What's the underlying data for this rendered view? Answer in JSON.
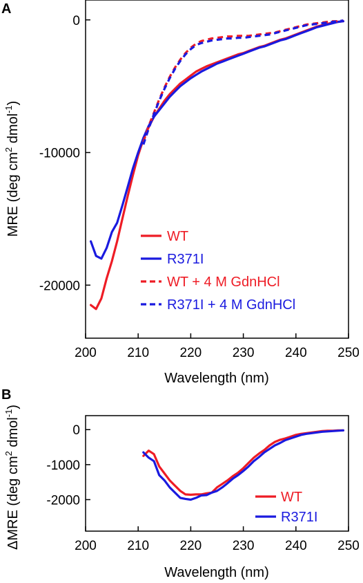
{
  "chart_data": [
    {
      "panel_label": "A",
      "type": "line",
      "xlabel": "Wavelength (nm)",
      "ylabel_parts": [
        "MRE (deg cm",
        "2",
        " dmol",
        "-1",
        ")"
      ],
      "xlim": [
        200,
        250
      ],
      "ylim": [
        -24000,
        1500
      ],
      "xticks": [
        200,
        210,
        220,
        230,
        240,
        250
      ],
      "yticks": [
        0,
        -10000,
        -20000
      ],
      "legend_position": "bottom-right",
      "series": [
        {
          "name": "WT",
          "color": "#ee1c25",
          "dash": "solid",
          "x": [
            201,
            202,
            203,
            204,
            205,
            206,
            207,
            208,
            209,
            210,
            211,
            212,
            213,
            214,
            215,
            216,
            217,
            218,
            219,
            220,
            221,
            222,
            223,
            224,
            225,
            226,
            227,
            228,
            229,
            230,
            231,
            232,
            233,
            234,
            235,
            236,
            237,
            238,
            239,
            240,
            241,
            242,
            243,
            244,
            245,
            246,
            247,
            248,
            249
          ],
          "y": [
            -21500,
            -21800,
            -21000,
            -19500,
            -18200,
            -16700,
            -15000,
            -13300,
            -11700,
            -10200,
            -9000,
            -8100,
            -7300,
            -6700,
            -6100,
            -5600,
            -5200,
            -4800,
            -4500,
            -4200,
            -3900,
            -3700,
            -3500,
            -3350,
            -3200,
            -3050,
            -2900,
            -2750,
            -2600,
            -2500,
            -2350,
            -2200,
            -2050,
            -1950,
            -1800,
            -1650,
            -1500,
            -1400,
            -1250,
            -1100,
            -950,
            -800,
            -650,
            -500,
            -400,
            -300,
            -200,
            -150,
            -100
          ]
        },
        {
          "name": "R371I",
          "color": "#1a1adf",
          "dash": "solid",
          "x": [
            201,
            202,
            203,
            204,
            205,
            206,
            207,
            208,
            209,
            210,
            211,
            212,
            213,
            214,
            215,
            216,
            217,
            218,
            219,
            220,
            221,
            222,
            223,
            224,
            225,
            226,
            227,
            228,
            229,
            230,
            231,
            232,
            233,
            234,
            235,
            236,
            237,
            238,
            239,
            240,
            241,
            242,
            243,
            244,
            245,
            246,
            247,
            248,
            249
          ],
          "y": [
            -16700,
            -17800,
            -18000,
            -17200,
            -16000,
            -15300,
            -14000,
            -12600,
            -11200,
            -10000,
            -8900,
            -8000,
            -7300,
            -6800,
            -6300,
            -5800,
            -5400,
            -5000,
            -4700,
            -4400,
            -4150,
            -3900,
            -3700,
            -3500,
            -3300,
            -3150,
            -3000,
            -2850,
            -2700,
            -2550,
            -2400,
            -2250,
            -2100,
            -2000,
            -1850,
            -1700,
            -1550,
            -1450,
            -1300,
            -1150,
            -1000,
            -850,
            -700,
            -550,
            -450,
            -350,
            -250,
            -150,
            -100
          ]
        },
        {
          "name": "WT + 4 M GdnHCl",
          "color": "#ee1c25",
          "dash": "dashed",
          "x": [
            211,
            212,
            213,
            214,
            215,
            216,
            217,
            218,
            219,
            220,
            221,
            222,
            223,
            224,
            225,
            226,
            227,
            228,
            229,
            230,
            231,
            232,
            233,
            234,
            235,
            236,
            237,
            238,
            239,
            240,
            241,
            242,
            243,
            244,
            245,
            246,
            247,
            248,
            249
          ],
          "y": [
            -9200,
            -8000,
            -7000,
            -6000,
            -5100,
            -4300,
            -3600,
            -3000,
            -2500,
            -2100,
            -1800,
            -1600,
            -1500,
            -1400,
            -1350,
            -1300,
            -1250,
            -1250,
            -1200,
            -1200,
            -1200,
            -1150,
            -1100,
            -1050,
            -1000,
            -950,
            -850,
            -750,
            -650,
            -550,
            -450,
            -350,
            -300,
            -250,
            -200,
            -150,
            -100,
            -100,
            -50
          ]
        },
        {
          "name": "R371I + 4 M GdnHCl",
          "color": "#1a1adf",
          "dash": "dashed",
          "x": [
            211,
            212,
            213,
            214,
            215,
            216,
            217,
            218,
            219,
            220,
            221,
            222,
            223,
            224,
            225,
            226,
            227,
            228,
            229,
            230,
            231,
            232,
            233,
            234,
            235,
            236,
            237,
            238,
            239,
            240,
            241,
            242,
            243,
            244,
            245,
            246,
            247,
            248,
            249
          ],
          "y": [
            -9400,
            -8200,
            -7100,
            -6100,
            -5200,
            -4400,
            -3700,
            -3100,
            -2600,
            -2200,
            -1900,
            -1750,
            -1650,
            -1550,
            -1500,
            -1450,
            -1400,
            -1400,
            -1350,
            -1350,
            -1300,
            -1250,
            -1200,
            -1150,
            -1100,
            -1000,
            -900,
            -800,
            -700,
            -600,
            -500,
            -400,
            -350,
            -300,
            -250,
            -200,
            -150,
            -100,
            -50
          ]
        }
      ]
    },
    {
      "panel_label": "B",
      "type": "line",
      "xlabel": "Wavelength (nm)",
      "ylabel_parts": [
        "ΔMRE (deg cm",
        "2",
        " dmol",
        "-1",
        ")"
      ],
      "xlim": [
        200,
        250
      ],
      "ylim": [
        -2900,
        400
      ],
      "xticks": [
        200,
        210,
        220,
        230,
        240,
        250
      ],
      "yticks": [
        0,
        -1000,
        -2000
      ],
      "legend_position": "bottom-right",
      "series": [
        {
          "name": "WT",
          "color": "#ee1c25",
          "dash": "solid",
          "x": [
            211,
            212,
            213,
            214,
            215,
            216,
            217,
            218,
            219,
            220,
            221,
            222,
            223,
            224,
            225,
            226,
            227,
            228,
            229,
            230,
            231,
            232,
            233,
            234,
            235,
            236,
            237,
            238,
            239,
            240,
            241,
            242,
            243,
            244,
            245,
            246,
            247,
            248,
            249
          ],
          "y": [
            -750,
            -600,
            -700,
            -1050,
            -1250,
            -1450,
            -1600,
            -1750,
            -1850,
            -1860,
            -1850,
            -1850,
            -1820,
            -1800,
            -1650,
            -1550,
            -1450,
            -1330,
            -1230,
            -1100,
            -950,
            -800,
            -680,
            -580,
            -450,
            -350,
            -290,
            -250,
            -200,
            -150,
            -120,
            -100,
            -80,
            -60,
            -40,
            -30,
            -30,
            -20,
            -20
          ]
        },
        {
          "name": "R371I",
          "color": "#1a1adf",
          "dash": "solid",
          "x": [
            211,
            212,
            213,
            214,
            215,
            216,
            217,
            218,
            219,
            220,
            221,
            222,
            223,
            224,
            225,
            226,
            227,
            228,
            229,
            230,
            231,
            232,
            233,
            234,
            235,
            236,
            237,
            238,
            239,
            240,
            241,
            242,
            243,
            244,
            245,
            246,
            247,
            248,
            249
          ],
          "y": [
            -650,
            -800,
            -900,
            -1300,
            -1450,
            -1650,
            -1800,
            -1950,
            -1980,
            -2000,
            -1950,
            -1880,
            -1870,
            -1800,
            -1750,
            -1650,
            -1530,
            -1400,
            -1300,
            -1180,
            -1050,
            -900,
            -780,
            -650,
            -550,
            -450,
            -380,
            -300,
            -250,
            -200,
            -150,
            -120,
            -100,
            -80,
            -60,
            -50,
            -40,
            -30,
            -20
          ]
        }
      ]
    }
  ]
}
